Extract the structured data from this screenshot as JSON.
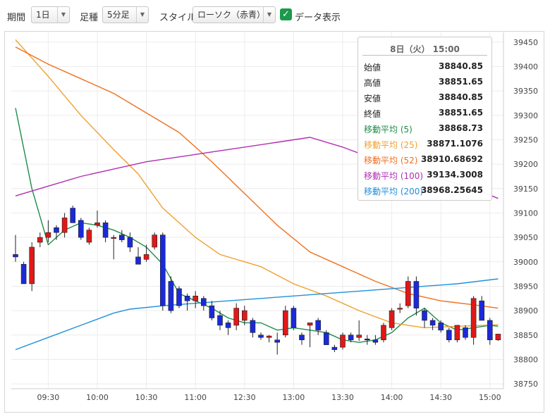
{
  "toolbar": {
    "period_label": "期間",
    "period_value": "1日",
    "interval_label": "足種",
    "interval_value": "5分足",
    "style_label": "スタイル",
    "style_value": "ローソク（赤青）",
    "data_display_label": "データ表示"
  },
  "tooltip": {
    "title": "8日（火） 15:00",
    "rows": [
      {
        "label": "始値",
        "value": "38840.85",
        "color": "#222222"
      },
      {
        "label": "高値",
        "value": "38851.65",
        "color": "#222222"
      },
      {
        "label": "安値",
        "value": "38840.85",
        "color": "#222222"
      },
      {
        "label": "終値",
        "value": "38851.65",
        "color": "#222222"
      },
      {
        "label": "移動平均 (5)",
        "value": "38868.73",
        "color": "#1e8c4a"
      },
      {
        "label": "移動平均 (25)",
        "value": "38871.1076",
        "color": "#f0a030"
      },
      {
        "label": "移動平均 (52)",
        "value": "38910.68692",
        "color": "#f07020"
      },
      {
        "label": "移動平均 (100)",
        "value": "39134.3008",
        "color": "#b030b0"
      },
      {
        "label": "移動平均 (200)",
        "value": "38968.25645",
        "color": "#2090d8"
      }
    ]
  },
  "chart_data": {
    "type": "candlestick",
    "y_range": [
      38740,
      39470
    ],
    "y_ticks": [
      "38750",
      "38800",
      "38850",
      "38900",
      "38950",
      "39000",
      "39050",
      "39100",
      "39150",
      "39200",
      "39250",
      "39300",
      "39350",
      "39400",
      "39450"
    ],
    "x_ticks": [
      {
        "label": "09:30",
        "index": 4
      },
      {
        "label": "10:00",
        "index": 10
      },
      {
        "label": "10:30",
        "index": 16
      },
      {
        "label": "11:00",
        "index": 22
      },
      {
        "label": "12:30",
        "index": 28
      },
      {
        "label": "13:00",
        "index": 34
      },
      {
        "label": "13:30",
        "index": 40
      },
      {
        "label": "14:00",
        "index": 46
      },
      {
        "label": "14:30",
        "index": 52
      },
      {
        "label": "15:00",
        "index": 58
      }
    ],
    "up_color": "#e01818",
    "down_color": "#1a2ad8",
    "candles": [
      [
        39015,
        39055,
        39000,
        39010
      ],
      [
        38995,
        39000,
        38960,
        38955
      ],
      [
        38955,
        39040,
        38940,
        39030
      ],
      [
        39040,
        39060,
        39030,
        39050
      ],
      [
        39050,
        39085,
        39040,
        39060
      ],
      [
        39070,
        39075,
        39045,
        39060
      ],
      [
        39060,
        39100,
        39050,
        39090
      ],
      [
        39110,
        39115,
        39080,
        39080
      ],
      [
        39085,
        39090,
        39045,
        39050
      ],
      [
        39040,
        39070,
        39035,
        39065
      ],
      [
        39075,
        39105,
        39070,
        39080
      ],
      [
        39080,
        39085,
        39040,
        39050
      ],
      [
        39050,
        39055,
        39005,
        39050
      ],
      [
        39055,
        39065,
        39040,
        39045
      ],
      [
        39050,
        39060,
        39020,
        39030
      ],
      [
        39010,
        39030,
        38995,
        38995
      ],
      [
        39005,
        39035,
        39000,
        39015
      ],
      [
        39030,
        39060,
        39025,
        39055
      ],
      [
        39055,
        39060,
        38900,
        38910
      ],
      [
        38960,
        38970,
        38895,
        38900
      ],
      [
        38945,
        38950,
        38905,
        38910
      ],
      [
        38930,
        38935,
        38900,
        38920
      ],
      [
        38920,
        38940,
        38905,
        38930
      ],
      [
        38925,
        38930,
        38900,
        38910
      ],
      [
        38910,
        38920,
        38880,
        38885
      ],
      [
        38890,
        38900,
        38860,
        38870
      ],
      [
        38875,
        38880,
        38850,
        38865
      ],
      [
        38870,
        38915,
        38860,
        38905
      ],
      [
        38880,
        38910,
        38870,
        38900
      ],
      [
        38880,
        38885,
        38845,
        38855
      ],
      [
        38850,
        38855,
        38840,
        38845
      ],
      [
        38845,
        38850,
        38835,
        38848
      ],
      [
        38840,
        38855,
        38810,
        38835
      ],
      [
        38850,
        38910,
        38845,
        38900
      ],
      [
        38905,
        38910,
        38860,
        38865
      ],
      [
        38850,
        38855,
        38830,
        38840
      ],
      [
        38870,
        38875,
        38825,
        38875
      ],
      [
        38880,
        38885,
        38850,
        38860
      ],
      [
        38855,
        38860,
        38830,
        38830
      ],
      [
        38825,
        38830,
        38815,
        38820
      ],
      [
        38825,
        38855,
        38820,
        38850
      ],
      [
        38850,
        38855,
        38835,
        38840
      ],
      [
        38845,
        38880,
        38838,
        38850
      ],
      [
        38842,
        38850,
        38830,
        38840
      ],
      [
        38840,
        38850,
        38830,
        38835
      ],
      [
        38840,
        38875,
        38835,
        38870
      ],
      [
        38865,
        38905,
        38860,
        38900
      ],
      [
        38905,
        38915,
        38895,
        38905
      ],
      [
        38910,
        38970,
        38905,
        38960
      ],
      [
        38960,
        38970,
        38890,
        38905
      ],
      [
        38900,
        38905,
        38865,
        38880
      ],
      [
        38880,
        38885,
        38860,
        38870
      ],
      [
        38875,
        38880,
        38855,
        38860
      ],
      [
        38860,
        38865,
        38835,
        38840
      ],
      [
        38840,
        38870,
        38835,
        38870
      ],
      [
        38865,
        38870,
        38840,
        38845
      ],
      [
        38845,
        38930,
        38830,
        38925
      ],
      [
        38920,
        38930,
        38880,
        38880
      ],
      [
        38880,
        38885,
        38830,
        38840
      ],
      [
        38840,
        38852,
        38838,
        38852
      ]
    ],
    "moving_averages": [
      {
        "name": "移動平均 (5)",
        "color": "#1e8c4a",
        "points": [
          [
            0,
            39315
          ],
          [
            2,
            39150
          ],
          [
            4,
            39035
          ],
          [
            6,
            39065
          ],
          [
            8,
            39080
          ],
          [
            10,
            39075
          ],
          [
            12,
            39065
          ],
          [
            14,
            39050
          ],
          [
            16,
            39030
          ],
          [
            18,
            38995
          ],
          [
            20,
            38935
          ],
          [
            22,
            38920
          ],
          [
            24,
            38905
          ],
          [
            26,
            38885
          ],
          [
            28,
            38875
          ],
          [
            30,
            38875
          ],
          [
            32,
            38860
          ],
          [
            34,
            38865
          ],
          [
            36,
            38860
          ],
          [
            38,
            38855
          ],
          [
            40,
            38840
          ],
          [
            42,
            38835
          ],
          [
            44,
            38840
          ],
          [
            46,
            38855
          ],
          [
            48,
            38885
          ],
          [
            50,
            38905
          ],
          [
            52,
            38875
          ],
          [
            54,
            38860
          ],
          [
            56,
            38865
          ],
          [
            58,
            38870
          ],
          [
            59,
            38868
          ]
        ]
      },
      {
        "name": "移動平均 (25)",
        "color": "#f0a030",
        "points": [
          [
            0,
            39455
          ],
          [
            4,
            39380
          ],
          [
            8,
            39300
          ],
          [
            12,
            39230
          ],
          [
            15,
            39180
          ],
          [
            18,
            39110
          ],
          [
            22,
            39050
          ],
          [
            25,
            39015
          ],
          [
            30,
            38990
          ],
          [
            34,
            38955
          ],
          [
            38,
            38930
          ],
          [
            42,
            38900
          ],
          [
            46,
            38875
          ],
          [
            50,
            38865
          ],
          [
            54,
            38868
          ],
          [
            59,
            38871
          ]
        ]
      },
      {
        "name": "移動平均 (52)",
        "color": "#f07020",
        "points": [
          [
            0,
            39440
          ],
          [
            4,
            39405
          ],
          [
            8,
            39375
          ],
          [
            12,
            39345
          ],
          [
            16,
            39305
          ],
          [
            20,
            39265
          ],
          [
            24,
            39205
          ],
          [
            28,
            39140
          ],
          [
            32,
            39075
          ],
          [
            36,
            39020
          ],
          [
            40,
            38990
          ],
          [
            44,
            38960
          ],
          [
            48,
            38935
          ],
          [
            52,
            38920
          ],
          [
            56,
            38912
          ],
          [
            59,
            38905
          ]
        ]
      },
      {
        "name": "移動平均 (100)",
        "color": "#b030b0",
        "points": [
          [
            0,
            39135
          ],
          [
            4,
            39155
          ],
          [
            8,
            39175
          ],
          [
            12,
            39190
          ],
          [
            16,
            39205
          ],
          [
            20,
            39215
          ],
          [
            24,
            39225
          ],
          [
            28,
            39235
          ],
          [
            32,
            39245
          ],
          [
            36,
            39255
          ],
          [
            40,
            39235
          ],
          [
            44,
            39210
          ],
          [
            48,
            39190
          ],
          [
            52,
            39170
          ],
          [
            56,
            39150
          ],
          [
            59,
            39130
          ]
        ]
      },
      {
        "name": "移動平均 (200)",
        "color": "#2090d8",
        "points": [
          [
            0,
            38820
          ],
          [
            4,
            38845
          ],
          [
            8,
            38870
          ],
          [
            12,
            38895
          ],
          [
            14,
            38903
          ],
          [
            18,
            38910
          ],
          [
            22,
            38915
          ],
          [
            26,
            38920
          ],
          [
            30,
            38925
          ],
          [
            34,
            38930
          ],
          [
            38,
            38935
          ],
          [
            42,
            38940
          ],
          [
            46,
            38945
          ],
          [
            50,
            38950
          ],
          [
            54,
            38955
          ],
          [
            59,
            38965
          ]
        ]
      }
    ]
  }
}
